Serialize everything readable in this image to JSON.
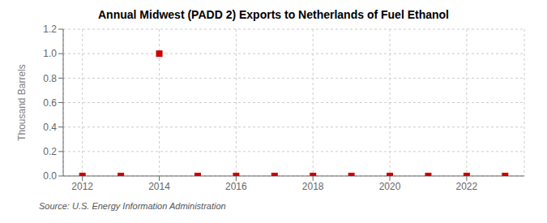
{
  "chart_data": {
    "type": "scatter",
    "title": "Annual Midwest (PADD 2) Exports to Netherlands of Fuel Ethanol",
    "ylabel": "Thousand Barrels",
    "annotations": [
      "Source: U.S. Energy Information Administration"
    ],
    "x": [
      2012,
      2013,
      2014,
      2015,
      2016,
      2017,
      2018,
      2019,
      2020,
      2021,
      2022,
      2023
    ],
    "values": [
      0,
      0,
      1.0,
      0,
      0,
      0,
      0,
      0,
      0,
      0,
      0,
      0
    ],
    "color": "#cc0000",
    "marker": "square",
    "xlim": [
      2011.5,
      2023.5
    ],
    "xticks": [
      2012,
      2014,
      2016,
      2018,
      2020,
      2022
    ],
    "ylim": [
      0,
      1.2
    ],
    "yticks": [
      {
        "value": 0,
        "label": "0.0"
      },
      0.2,
      0.4,
      0.6,
      0.8,
      {
        "value": 1,
        "label": "1.0"
      },
      1.2
    ],
    "grid": true
  }
}
